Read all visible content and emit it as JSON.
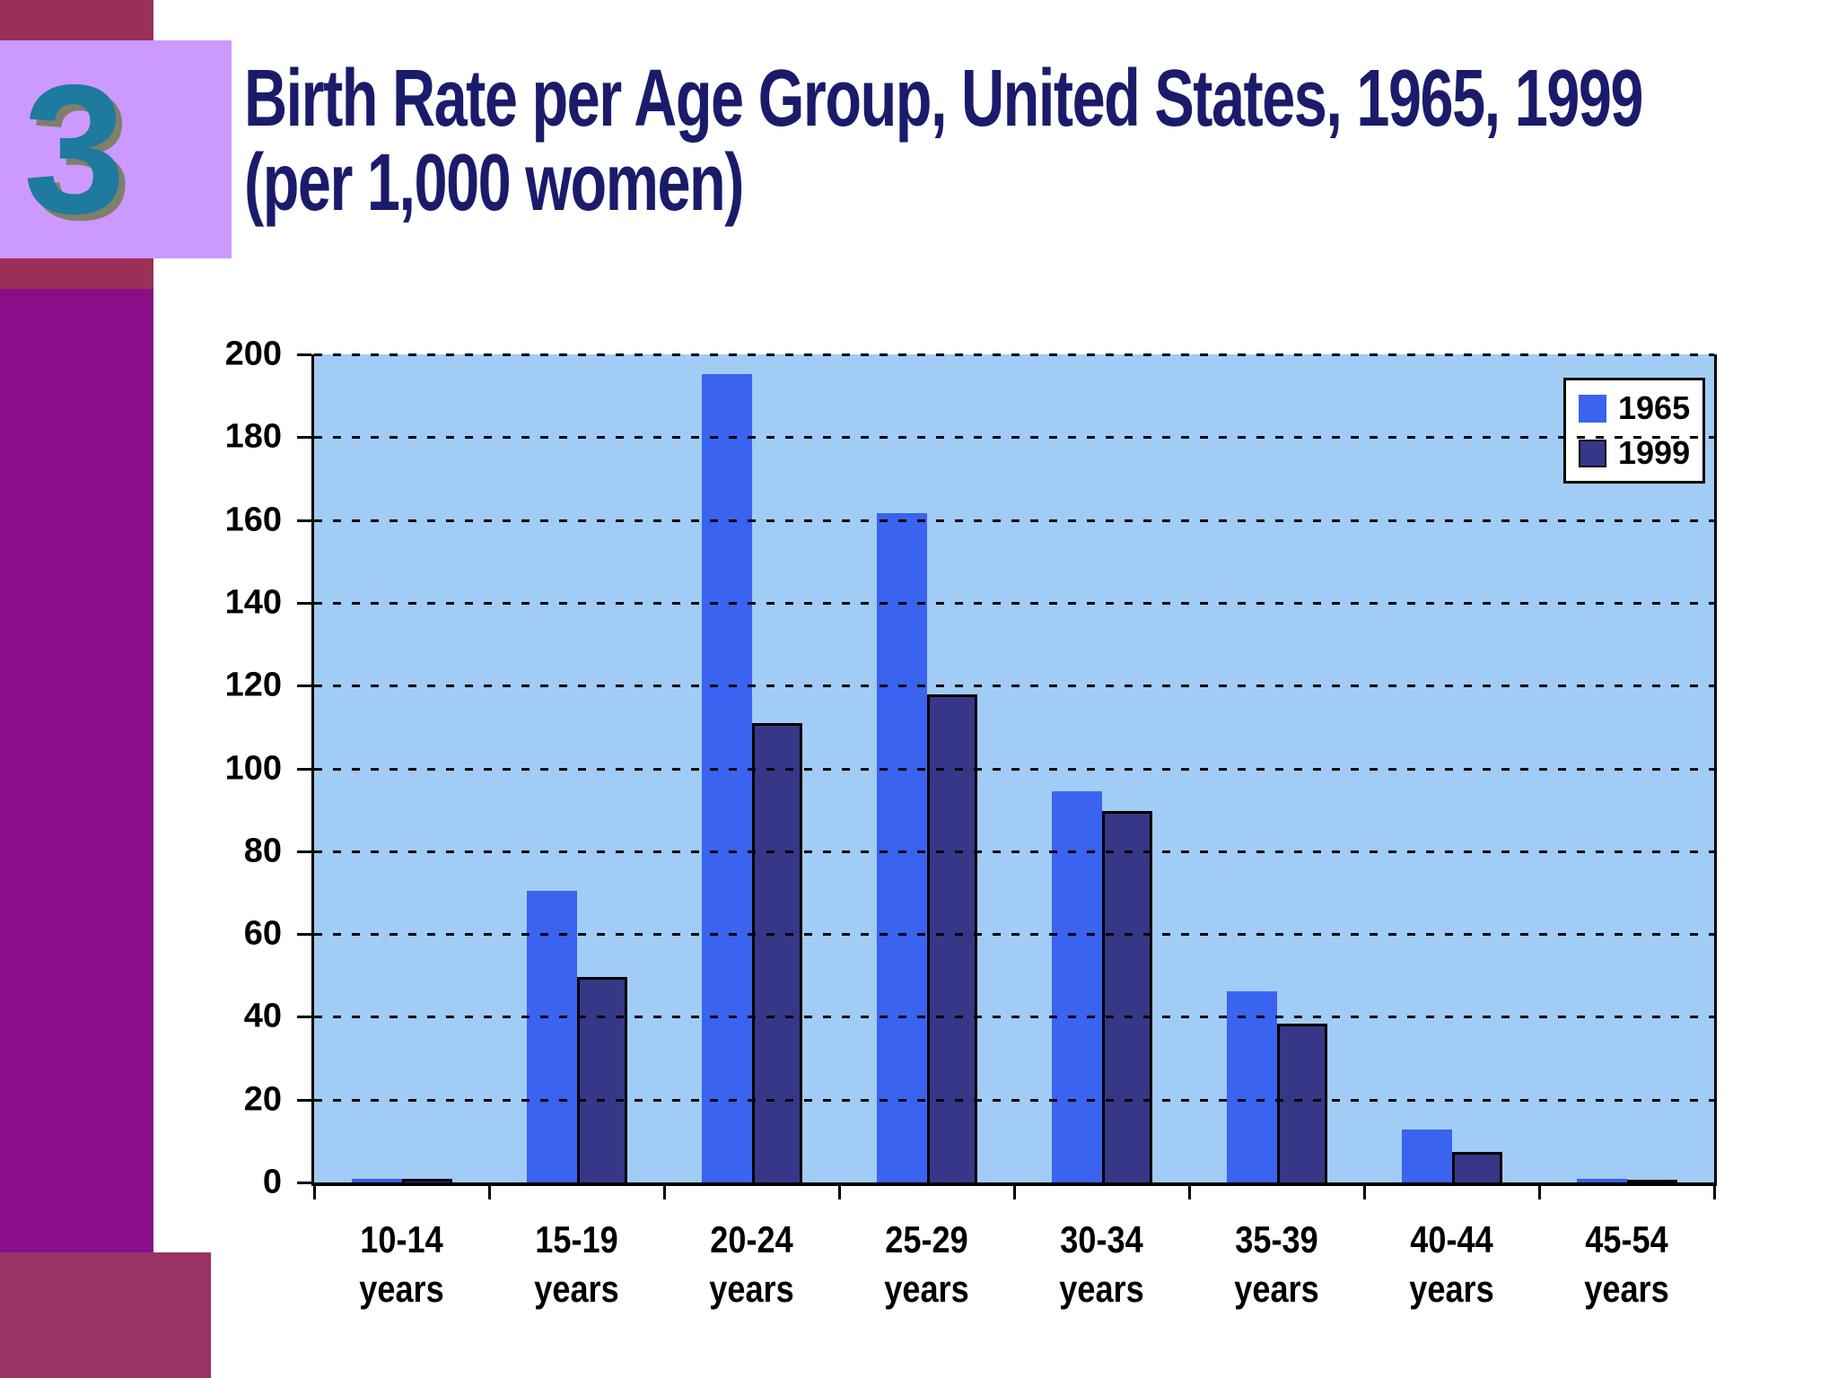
{
  "slide": {
    "number": "3",
    "title_line1": "Birth Rate per Age Group, United States, 1965, 1999",
    "title_line2": "(per 1,000 women)",
    "colors": {
      "title_text": "#1b1b6b",
      "corner_block": "#9c2f58",
      "left_bar": "#8a0e88",
      "bottom_block": "#993366",
      "number_chip_bg": "#cc99ff",
      "number_text": "#1e7a9e"
    }
  },
  "chart_data": {
    "type": "bar",
    "title": "",
    "xlabel": "",
    "ylabel": "",
    "categories": [
      "10-14 years",
      "15-19 years",
      "20-24 years",
      "25-29 years",
      "30-34 years",
      "35-39 years",
      "40-44 years",
      "45-54 years"
    ],
    "series": [
      {
        "name": "1965",
        "color": "#3a63ef",
        "values": [
          0.8,
          70.5,
          195.3,
          161.6,
          94.4,
          46.2,
          12.8,
          0.8
        ]
      },
      {
        "name": "1999",
        "color": "#373787",
        "values": [
          0.9,
          49.6,
          111.0,
          117.8,
          89.6,
          38.3,
          7.4,
          0.4
        ]
      }
    ],
    "ylim": [
      0,
      200
    ],
    "ytick_step": 20,
    "grid": "horizontal-dashed",
    "legend_position": "top-right",
    "plot_bg": "#a1ccf5",
    "grid_color": "#000000"
  }
}
